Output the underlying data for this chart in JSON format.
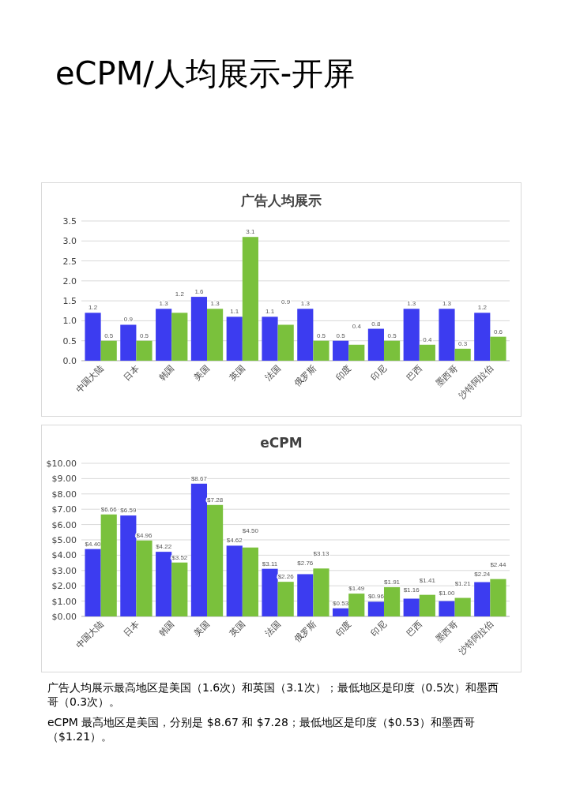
{
  "chart_data": [
    {
      "type": "bar",
      "title": "广告人均展示",
      "annotations": [
        "eCPM/人均展示-开屏"
      ],
      "categories": [
        "中国大陆",
        "日本",
        "韩国",
        "美国",
        "英国",
        "法国",
        "俄罗斯",
        "印度",
        "印尼",
        "巴西",
        "墨西哥",
        "沙特阿拉伯"
      ],
      "series": [
        {
          "color": "#3c3cf0",
          "values": [
            1.2,
            0.9,
            1.3,
            1.6,
            1.1,
            1.1,
            1.3,
            0.5,
            0.8,
            1.3,
            1.3,
            1.2
          ]
        },
        {
          "color": "#7ac13c",
          "values": [
            0.5,
            0.5,
            1.2,
            1.3,
            3.1,
            0.9,
            0.5,
            0.4,
            0.5,
            0.4,
            0.3,
            0.6
          ]
        }
      ],
      "ylim": [
        0,
        3.5
      ],
      "yticks": [
        {
          "value": 0,
          "label": "0.0"
        },
        {
          "value": 0.5,
          "label": "0.5"
        },
        {
          "value": 1,
          "label": "1.0"
        },
        {
          "value": 1.5,
          "label": "1.5"
        },
        {
          "value": 2,
          "label": "2.0"
        },
        {
          "value": 2.5,
          "label": "2.5"
        },
        {
          "value": 3,
          "label": "3.0"
        },
        {
          "value": 3.5,
          "label": "3.5"
        }
      ],
      "grid": "y",
      "data_labels": true
    },
    {
      "type": "bar",
      "title": "eCPM",
      "categories": [
        "中国大陆",
        "日本",
        "韩国",
        "美国",
        "英国",
        "法国",
        "俄罗斯",
        "印度",
        "印尼",
        "巴西",
        "墨西哥",
        "沙特阿拉伯"
      ],
      "series": [
        {
          "color": "#3c3cf0",
          "values": [
            4.4,
            6.59,
            4.22,
            8.67,
            4.62,
            3.11,
            2.76,
            0.53,
            0.96,
            1.16,
            1.0,
            2.24
          ],
          "value_labels": [
            "$4.40",
            "$6.59",
            "$4.22",
            "$8.67",
            "$4.62",
            "$3.11",
            "$2.76",
            "$0.53",
            "$0.96",
            "$1.16",
            "$1.00",
            "$2.24"
          ]
        },
        {
          "color": "#7ac13c",
          "values": [
            6.66,
            4.96,
            3.52,
            7.28,
            4.5,
            2.26,
            3.13,
            1.49,
            1.91,
            1.41,
            1.21,
            2.44
          ],
          "value_labels": [
            "$6.66",
            "$4.96",
            "$3.52",
            "$7.28",
            "$4.50",
            "$2.26",
            "$3.13",
            "$1.49",
            "$1.91",
            "$1.41",
            "$1.21",
            "$2.44"
          ]
        }
      ],
      "ylim": [
        0,
        10
      ],
      "yticks": [
        {
          "value": 0,
          "label": "$0.00"
        },
        {
          "value": 1,
          "label": "$1.00"
        },
        {
          "value": 2,
          "label": "$2.00"
        },
        {
          "value": 3,
          "label": "$3.00"
        },
        {
          "value": 4,
          "label": "$4.00"
        },
        {
          "value": 5,
          "label": "$5.00"
        },
        {
          "value": 6,
          "label": "$6.00"
        },
        {
          "value": 7,
          "label": "$7.00"
        },
        {
          "value": 8,
          "label": "$8.00"
        },
        {
          "value": 9,
          "label": "$9.00"
        },
        {
          "value": 10,
          "label": "$10.00"
        }
      ],
      "grid": "y",
      "annotations": [
        "广告人均展示最高地区是美国（1.6次）和英国（3.1次）；最低地区是印度（0.5次）和墨西哥（0.3次）。",
        "eCPM 最高地区是美国，分别是 $8.67 和 $7.28；最低地区是印度（$0.53）和墨西哥（$1.21）。"
      ]
    }
  ]
}
